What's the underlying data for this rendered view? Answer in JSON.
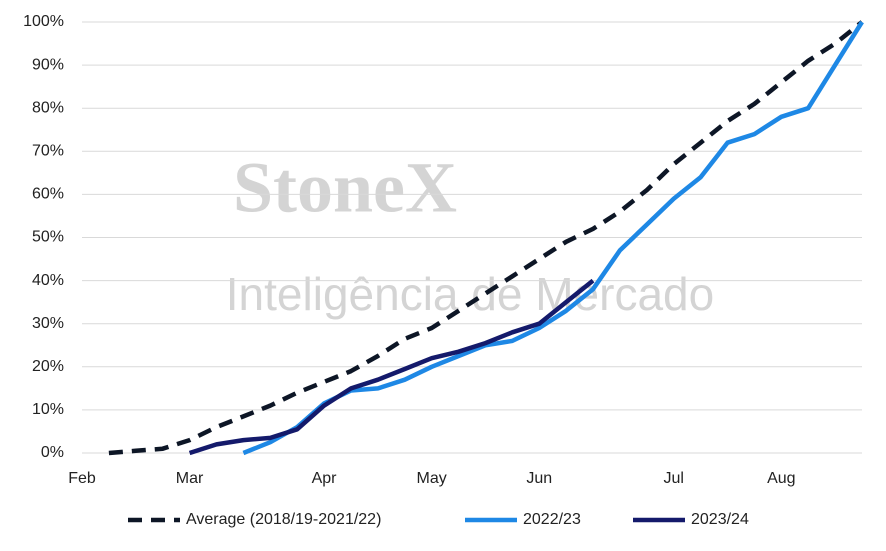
{
  "chart_data": {
    "type": "line",
    "watermark": {
      "brand": "StoneX",
      "tagline": "Inteligência de Mercado"
    },
    "categories": [
      "Feb",
      null,
      null,
      null,
      "Mar",
      null,
      null,
      null,
      null,
      "Apr",
      null,
      null,
      null,
      "May",
      null,
      null,
      null,
      "Jun",
      null,
      null,
      null,
      null,
      "Jul",
      null,
      null,
      null,
      "Aug",
      null,
      null,
      null
    ],
    "series": [
      {
        "name": "Average (2018/19-2021/22)",
        "color": "#0d1626",
        "dashed": true,
        "values": [
          null,
          0,
          0.5,
          1,
          3,
          6,
          8.5,
          11,
          14,
          16.5,
          19,
          22.5,
          26.5,
          29,
          33,
          37,
          41,
          45,
          49,
          52,
          56,
          61,
          67,
          72,
          77,
          81,
          86,
          91,
          95,
          100
        ]
      },
      {
        "name": "2022/23",
        "color": "#1e88e5",
        "dashed": false,
        "values": [
          null,
          null,
          null,
          null,
          null,
          null,
          0,
          2.5,
          6,
          11.5,
          14.5,
          15,
          17,
          20,
          22.5,
          25,
          26,
          29,
          33,
          38,
          47,
          53,
          59,
          64,
          72,
          74,
          78,
          80,
          90,
          100
        ]
      },
      {
        "name": "2023/24",
        "color": "#141a6b",
        "dashed": false,
        "values": [
          null,
          null,
          null,
          null,
          0,
          2,
          3,
          3.5,
          5.5,
          11,
          15,
          17,
          19.5,
          22,
          23.5,
          25.5,
          28,
          30,
          35,
          40,
          null,
          null,
          null,
          null,
          null,
          null,
          null,
          null,
          null,
          null
        ]
      }
    ],
    "ylim": [
      0,
      100
    ],
    "yticks": [
      {
        "value": 0,
        "label": "0%"
      },
      {
        "value": 10,
        "label": "10%"
      },
      {
        "value": 20,
        "label": "20%"
      },
      {
        "value": 30,
        "label": "30%"
      },
      {
        "value": 40,
        "label": "40%"
      },
      {
        "value": 50,
        "label": "50%"
      },
      {
        "value": 60,
        "label": "60%"
      },
      {
        "value": 70,
        "label": "70%"
      },
      {
        "value": 80,
        "label": "80%"
      },
      {
        "value": 90,
        "label": "90%"
      },
      {
        "value": 100,
        "label": "100%"
      }
    ],
    "grid": true,
    "legend": "bottom"
  }
}
